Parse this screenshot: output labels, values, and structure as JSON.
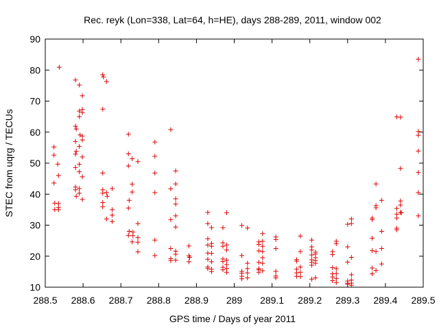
{
  "chart_data": {
    "type": "scatter",
    "title": "Rec. reyk (Lon=338, Lat=64, h=HE), days 288-289, 2011, window 002",
    "xlabel": "GPS time / Days of year 2011",
    "ylabel": "STEC from uqrg / TECUs",
    "xlim": [
      288.5,
      289.5
    ],
    "ylim": [
      10,
      90
    ],
    "xticks": [
      288.5,
      288.6,
      288.7,
      288.8,
      288.9,
      289.0,
      289.1,
      289.2,
      289.3,
      289.4,
      289.5
    ],
    "xtick_labels": [
      "288.5",
      "288.6",
      "288.7",
      "288.8",
      "288.9",
      "289",
      "289.1",
      "289.2",
      "289.3",
      "289.4",
      "289.5"
    ],
    "yticks": [
      10,
      20,
      30,
      40,
      50,
      60,
      70,
      80,
      90
    ],
    "ytick_labels": [
      "10",
      "20",
      "30",
      "40",
      "50",
      "60",
      "70",
      "80",
      "90"
    ],
    "grid": false,
    "marker": "+",
    "color": "#e00000",
    "points": [
      [
        288.523,
        55.2
      ],
      [
        288.523,
        52.6
      ],
      [
        288.523,
        43.6
      ],
      [
        288.525,
        37.1
      ],
      [
        288.525,
        35.0
      ],
      [
        288.533,
        49.7
      ],
      [
        288.535,
        46.0
      ],
      [
        288.535,
        37.0
      ],
      [
        288.535,
        35.7
      ],
      [
        288.535,
        35.0
      ],
      [
        288.537,
        80.9
      ],
      [
        288.58,
        76.8
      ],
      [
        288.58,
        61.9
      ],
      [
        288.582,
        61.0
      ],
      [
        288.58,
        57.0
      ],
      [
        288.582,
        53.8
      ],
      [
        288.58,
        52.9
      ],
      [
        288.58,
        48.6
      ],
      [
        288.58,
        42.3
      ],
      [
        288.58,
        41.4
      ],
      [
        288.582,
        39.3
      ],
      [
        288.59,
        75.2
      ],
      [
        288.59,
        66.8
      ],
      [
        288.59,
        65.0
      ],
      [
        288.592,
        59.1
      ],
      [
        288.59,
        55.4
      ],
      [
        288.59,
        49.6
      ],
      [
        288.59,
        47.2
      ],
      [
        288.59,
        41.8
      ],
      [
        288.59,
        40.3
      ],
      [
        288.598,
        71.7
      ],
      [
        288.598,
        67.3
      ],
      [
        288.598,
        66.3
      ],
      [
        288.598,
        58.7
      ],
      [
        288.598,
        57.5
      ],
      [
        288.598,
        52.0
      ],
      [
        288.598,
        45.6
      ],
      [
        288.598,
        38.3
      ],
      [
        288.652,
        78.5
      ],
      [
        288.654,
        77.8
      ],
      [
        288.652,
        67.4
      ],
      [
        288.652,
        46.8
      ],
      [
        288.652,
        41.4
      ],
      [
        288.652,
        40.3
      ],
      [
        288.652,
        37.3
      ],
      [
        288.652,
        35.9
      ],
      [
        288.662,
        76.3
      ],
      [
        288.662,
        40.5
      ],
      [
        288.664,
        39.3
      ],
      [
        288.662,
        32.0
      ],
      [
        288.677,
        41.8
      ],
      [
        288.677,
        35.0
      ],
      [
        288.677,
        33.2
      ],
      [
        288.677,
        31.2
      ],
      [
        288.72,
        59.3
      ],
      [
        288.72,
        53.0
      ],
      [
        288.72,
        49.1
      ],
      [
        288.722,
        38.0
      ],
      [
        288.72,
        35.5
      ],
      [
        288.722,
        28.0
      ],
      [
        288.72,
        26.7
      ],
      [
        288.73,
        51.4
      ],
      [
        288.73,
        43.2
      ],
      [
        288.73,
        40.7
      ],
      [
        288.732,
        27.8
      ],
      [
        288.732,
        26.6
      ],
      [
        288.73,
        24.6
      ],
      [
        288.745,
        50.5
      ],
      [
        288.745,
        30.5
      ],
      [
        288.745,
        26.0
      ],
      [
        288.745,
        24.5
      ],
      [
        288.745,
        21.4
      ],
      [
        288.79,
        56.8
      ],
      [
        288.79,
        52.2
      ],
      [
        288.79,
        46.8
      ],
      [
        288.79,
        40.5
      ],
      [
        288.79,
        25.2
      ],
      [
        288.79,
        20.2
      ],
      [
        288.832,
        60.8
      ],
      [
        288.832,
        41.7
      ],
      [
        288.832,
        31.8
      ],
      [
        288.832,
        22.5
      ],
      [
        288.832,
        19.2
      ],
      [
        288.832,
        18.6
      ],
      [
        288.845,
        47.5
      ],
      [
        288.845,
        43.3
      ],
      [
        288.845,
        38.5
      ],
      [
        288.845,
        36.8
      ],
      [
        288.845,
        33.0
      ],
      [
        288.845,
        29.4
      ],
      [
        288.845,
        21.6
      ],
      [
        288.845,
        20.6
      ],
      [
        288.845,
        18.7
      ],
      [
        288.88,
        23.3
      ],
      [
        288.88,
        20.1
      ],
      [
        288.882,
        19.6
      ],
      [
        288.88,
        18.2
      ],
      [
        288.93,
        34.1
      ],
      [
        288.93,
        30.5
      ],
      [
        288.93,
        25.6
      ],
      [
        288.93,
        23.6
      ],
      [
        288.93,
        21.0
      ],
      [
        288.93,
        19.0
      ],
      [
        288.93,
        16.5
      ],
      [
        288.93,
        16.0
      ],
      [
        288.94,
        29.2
      ],
      [
        288.94,
        24.1
      ],
      [
        288.94,
        23.2
      ],
      [
        288.94,
        20.9
      ],
      [
        288.94,
        18.2
      ],
      [
        288.94,
        15.8
      ],
      [
        288.94,
        15.0
      ],
      [
        288.97,
        29.2
      ],
      [
        288.97,
        24.3
      ],
      [
        288.97,
        23.2
      ],
      [
        288.97,
        19.1
      ],
      [
        288.97,
        18.3
      ],
      [
        288.97,
        16.4
      ],
      [
        288.97,
        15.6
      ],
      [
        288.98,
        34.0
      ],
      [
        288.98,
        23.6
      ],
      [
        288.98,
        22.0
      ],
      [
        288.98,
        18.7
      ],
      [
        288.98,
        17.3
      ],
      [
        288.98,
        16.0
      ],
      [
        288.98,
        14.8
      ],
      [
        289.02,
        29.9
      ],
      [
        289.02,
        20.2
      ],
      [
        289.02,
        15.1
      ],
      [
        289.02,
        14.5
      ],
      [
        289.02,
        13.5
      ],
      [
        289.02,
        12.7
      ],
      [
        289.035,
        29.1
      ],
      [
        289.035,
        17.7
      ],
      [
        289.035,
        16.0
      ],
      [
        289.035,
        14.6
      ],
      [
        289.035,
        13.0
      ],
      [
        289.065,
        24.6
      ],
      [
        289.065,
        23.8
      ],
      [
        289.065,
        21.7
      ],
      [
        289.065,
        18.0
      ],
      [
        289.065,
        16.0
      ],
      [
        289.065,
        15.6
      ],
      [
        289.065,
        14.8
      ],
      [
        289.075,
        27.3
      ],
      [
        289.075,
        24.8
      ],
      [
        289.075,
        23.2
      ],
      [
        289.075,
        21.5
      ],
      [
        289.075,
        19.5
      ],
      [
        289.075,
        17.7
      ],
      [
        289.075,
        15.3
      ],
      [
        289.11,
        26.2
      ],
      [
        289.11,
        25.4
      ],
      [
        289.11,
        22.5
      ],
      [
        289.11,
        15.1
      ],
      [
        289.11,
        13.6
      ],
      [
        289.11,
        13.0
      ],
      [
        289.165,
        18.9
      ],
      [
        289.165,
        18.4
      ],
      [
        289.165,
        15.8
      ],
      [
        289.165,
        14.6
      ],
      [
        289.165,
        13.5
      ],
      [
        289.175,
        26.5
      ],
      [
        289.175,
        21.5
      ],
      [
        289.175,
        16.5
      ],
      [
        289.175,
        14.8
      ],
      [
        289.175,
        13.4
      ],
      [
        289.205,
        25.2
      ],
      [
        289.205,
        23.0
      ],
      [
        289.205,
        22.0
      ],
      [
        289.205,
        20.4
      ],
      [
        289.205,
        18.8
      ],
      [
        289.205,
        18.0
      ],
      [
        289.205,
        17.1
      ],
      [
        289.205,
        12.6
      ],
      [
        289.215,
        21.3
      ],
      [
        289.215,
        20.7
      ],
      [
        289.215,
        19.5
      ],
      [
        289.215,
        18.6
      ],
      [
        289.215,
        17.7
      ],
      [
        289.215,
        13.0
      ],
      [
        289.26,
        21.5
      ],
      [
        289.26,
        20.5
      ],
      [
        289.26,
        16.3
      ],
      [
        289.26,
        14.3
      ],
      [
        289.26,
        13.3
      ],
      [
        289.26,
        12.1
      ],
      [
        289.27,
        24.8
      ],
      [
        289.27,
        24.0
      ],
      [
        289.27,
        16.0
      ],
      [
        289.27,
        14.4
      ],
      [
        289.27,
        12.8
      ],
      [
        289.27,
        11.5
      ],
      [
        289.3,
        30.3
      ],
      [
        289.3,
        23.0
      ],
      [
        289.3,
        18.1
      ],
      [
        289.3,
        12.0
      ],
      [
        289.3,
        11.3
      ],
      [
        289.3,
        11.0
      ],
      [
        289.31,
        32.0
      ],
      [
        289.31,
        30.5
      ],
      [
        289.31,
        19.6
      ],
      [
        289.31,
        14.0
      ],
      [
        289.31,
        12.3
      ],
      [
        289.31,
        11.3
      ],
      [
        289.31,
        10.6
      ],
      [
        289.365,
        32.3
      ],
      [
        289.365,
        31.8
      ],
      [
        289.365,
        25.8
      ],
      [
        289.365,
        21.8
      ],
      [
        289.365,
        16.2
      ],
      [
        289.365,
        14.3
      ],
      [
        289.375,
        43.3
      ],
      [
        289.375,
        36.3
      ],
      [
        289.375,
        35.6
      ],
      [
        289.375,
        21.5
      ],
      [
        289.375,
        15.4
      ],
      [
        289.39,
        38.0
      ],
      [
        289.39,
        28.0
      ],
      [
        289.39,
        22.5
      ],
      [
        289.39,
        17.5
      ],
      [
        289.43,
        64.9
      ],
      [
        289.43,
        35.4
      ],
      [
        289.43,
        33.5
      ],
      [
        289.43,
        32.3
      ],
      [
        289.43,
        29.0
      ],
      [
        289.43,
        28.5
      ],
      [
        289.44,
        64.8
      ],
      [
        289.44,
        48.3
      ],
      [
        289.44,
        37.8
      ],
      [
        289.44,
        36.5
      ],
      [
        289.44,
        34.1
      ],
      [
        289.442,
        34.0
      ],
      [
        289.487,
        83.5
      ],
      [
        289.487,
        60.2
      ],
      [
        289.487,
        59.0
      ],
      [
        289.487,
        53.9
      ],
      [
        289.487,
        47.0
      ],
      [
        289.487,
        40.5
      ],
      [
        289.487,
        33.0
      ]
    ]
  }
}
